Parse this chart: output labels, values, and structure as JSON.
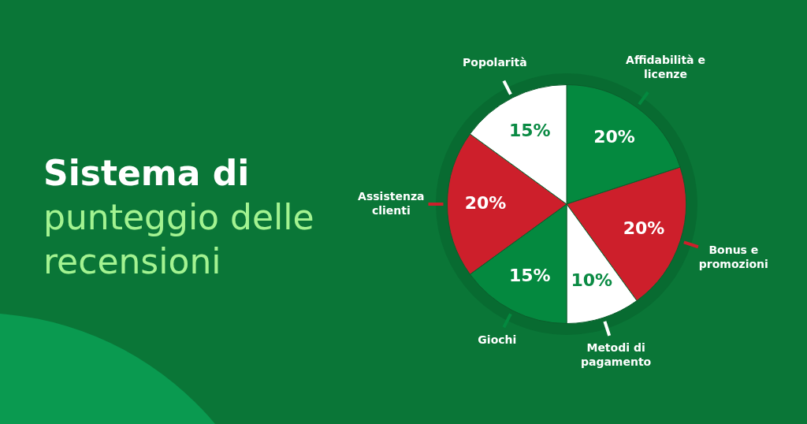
{
  "chart_data": {
    "type": "pie",
    "title": "Sistema di punteggio delle recensioni",
    "categories": [
      "Affidabilità e licenze",
      "Bonus e promozioni",
      "Metodi di pagamento",
      "Giochi",
      "Assistenza clienti",
      "Popolarità"
    ],
    "values": [
      20,
      20,
      10,
      15,
      20,
      15
    ],
    "colors": [
      "#04893f",
      "#cd1f2b",
      "#ffffff",
      "#04893f",
      "#cd1f2b",
      "#ffffff"
    ],
    "value_labels": [
      "20%",
      "20%",
      "10%",
      "15%",
      "20%",
      "15%"
    ]
  }
}
